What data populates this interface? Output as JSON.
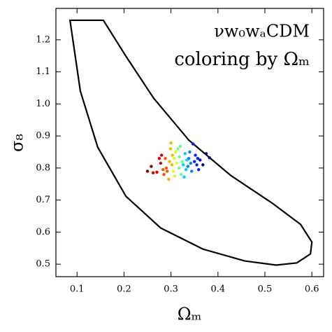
{
  "chart_data": {
    "type": "scatter",
    "title": "νw₀wₐCDM",
    "subtitle": "coloring by Ωₘ",
    "x_label": "Ωₘ",
    "y_label": "σ₈",
    "xlim": [
      0.055,
      0.625
    ],
    "ylim": [
      0.461,
      1.298
    ],
    "xticks": [
      0.1,
      0.2,
      0.3,
      0.4,
      0.5,
      0.6
    ],
    "yticks": [
      0.5,
      0.6,
      0.7,
      0.8,
      0.9,
      {
        "value": 1,
        "label": "1.0"
      },
      1.1,
      1.2
    ],
    "contour": {
      "color": "#000000",
      "x": [
        0.085,
        0.156,
        0.204,
        0.263,
        0.338,
        0.427,
        0.516,
        0.576,
        0.6,
        0.597,
        0.568,
        0.524,
        0.457,
        0.368,
        0.278,
        0.204,
        0.144,
        0.107
      ],
      "y": [
        1.261,
        1.261,
        1.149,
        1.018,
        0.887,
        0.777,
        0.69,
        0.624,
        0.569,
        0.532,
        0.504,
        0.497,
        0.51,
        0.547,
        0.613,
        0.712,
        0.865,
        1.04
      ]
    },
    "points": {
      "x": [
        0.25,
        0.258,
        0.262,
        0.27,
        0.275,
        0.278,
        0.28,
        0.283,
        0.285,
        0.288,
        0.29,
        0.292,
        0.295,
        0.297,
        0.299,
        0.3,
        0.302,
        0.303,
        0.305,
        0.307,
        0.308,
        0.31,
        0.312,
        0.315,
        0.317,
        0.318,
        0.32,
        0.322,
        0.324,
        0.326,
        0.328,
        0.33,
        0.332,
        0.334,
        0.336,
        0.338,
        0.34,
        0.342,
        0.344,
        0.347,
        0.35,
        0.352,
        0.355,
        0.357,
        0.359,
        0.362,
        0.368,
        0.375,
        0.382
      ],
      "y": [
        0.79,
        0.805,
        0.785,
        0.787,
        0.83,
        0.815,
        0.84,
        0.795,
        0.78,
        0.83,
        0.8,
        0.79,
        0.765,
        0.82,
        0.86,
        0.878,
        0.81,
        0.84,
        0.79,
        0.83,
        0.775,
        0.85,
        0.815,
        0.86,
        0.8,
        0.835,
        0.868,
        0.78,
        0.82,
        0.81,
        0.772,
        0.845,
        0.795,
        0.825,
        0.805,
        0.83,
        0.85,
        0.815,
        0.79,
        0.875,
        0.82,
        0.84,
        0.81,
        0.83,
        0.795,
        0.825,
        0.81,
        0.845,
        0.832
      ],
      "colors": [
        "#800000",
        "#800000",
        "#d00000",
        "#d00000",
        "#d00000",
        "#d00000",
        "#d00000",
        "#ff5000",
        "#ff5000",
        "#ff5000",
        "#ff5000",
        "#ff5000",
        "#ffb000",
        "#ffb000",
        "#ffb000",
        "#ffb000",
        "#ffb000",
        "#ffb000",
        "#d0ff30",
        "#d0ff30",
        "#d0ff30",
        "#d0ff30",
        "#d0ff30",
        "#60ff90",
        "#60ff90",
        "#60ff90",
        "#60ff90",
        "#60ff90",
        "#60ff90",
        "#00d0ff",
        "#00d0ff",
        "#00d0ff",
        "#00d0ff",
        "#00d0ff",
        "#0080ff",
        "#0080ff",
        "#0080ff",
        "#0080ff",
        "#0080ff",
        "#0020ff",
        "#0020ff",
        "#0020ff",
        "#0020ff",
        "#0020ff",
        "#0020ff",
        "#0000a0",
        "#0000a0",
        "#0000a0",
        "#0000a0"
      ]
    }
  }
}
